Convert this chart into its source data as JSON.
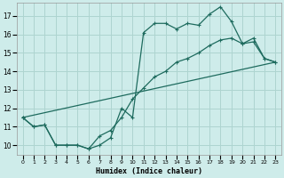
{
  "xlabel": "Humidex (Indice chaleur)",
  "bg_color": "#ceecea",
  "grid_color": "#aed4d0",
  "line_color": "#1e6b5e",
  "xlim": [
    -0.5,
    23.5
  ],
  "ylim": [
    9.5,
    17.7
  ],
  "xticks": [
    0,
    1,
    2,
    3,
    4,
    5,
    6,
    7,
    8,
    9,
    10,
    11,
    12,
    13,
    14,
    15,
    16,
    17,
    18,
    19,
    20,
    21,
    22,
    23
  ],
  "yticks": [
    10,
    11,
    12,
    13,
    14,
    15,
    16,
    17
  ],
  "series1_x": [
    0,
    1,
    2,
    3,
    4,
    5,
    6,
    7,
    8,
    9,
    10,
    11,
    12,
    13,
    14,
    15,
    16,
    17,
    18,
    19,
    20,
    21,
    22,
    23
  ],
  "series1_y": [
    11.5,
    11.0,
    11.1,
    10.0,
    10.0,
    10.0,
    9.8,
    10.0,
    10.4,
    12.0,
    11.5,
    16.1,
    16.6,
    16.6,
    16.3,
    16.6,
    16.5,
    17.1,
    17.5,
    16.7,
    15.5,
    15.6,
    14.7,
    14.5
  ],
  "series2_x": [
    0,
    1,
    2,
    3,
    4,
    5,
    6,
    7,
    8,
    9,
    10,
    11,
    12,
    13,
    14,
    15,
    16,
    17,
    18,
    19,
    20,
    21,
    22,
    23
  ],
  "series2_y": [
    11.5,
    11.0,
    11.1,
    10.0,
    10.0,
    10.0,
    9.8,
    10.5,
    10.8,
    11.5,
    12.5,
    13.1,
    13.7,
    14.0,
    14.5,
    14.7,
    15.0,
    15.4,
    15.7,
    15.8,
    15.5,
    15.8,
    14.7,
    14.5
  ],
  "series3_x": [
    0,
    23
  ],
  "series3_y": [
    11.5,
    14.5
  ]
}
